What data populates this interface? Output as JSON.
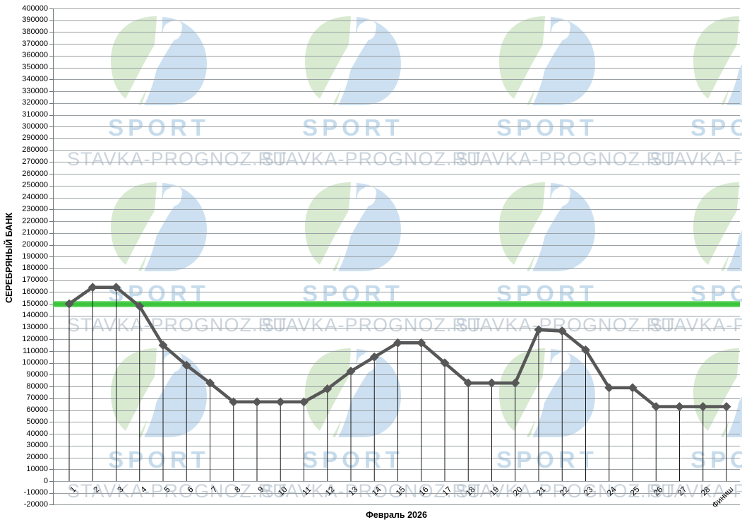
{
  "watermark": {
    "sport_text": "SPORT",
    "site_text": "STAVKA-PROGNOZ.RU",
    "logo_green": "#cfe5c5",
    "logo_blue": "#c0d9ee"
  },
  "chart_data": {
    "type": "line",
    "title": "",
    "xlabel": "Февраль 2026",
    "ylabel": "СЕРЕБРЯНЫЙ БАНК",
    "x_categories": [
      "1",
      "2",
      "3",
      "4",
      "5",
      "6",
      "7",
      "8",
      "9",
      "10",
      "11",
      "12",
      "13",
      "14",
      "15",
      "16",
      "17",
      "18",
      "19",
      "20",
      "21",
      "22",
      "23",
      "24",
      "25",
      "26",
      "27",
      "28",
      "Финиш"
    ],
    "series": [
      {
        "name": "Серебряный банк",
        "color": "#575757",
        "marker": "diamond",
        "values": [
          150000,
          164000,
          164000,
          148000,
          115000,
          98000,
          83000,
          67000,
          67000,
          67000,
          67000,
          78000,
          93000,
          105000,
          117000,
          117000,
          100000,
          83000,
          83000,
          83000,
          128000,
          127000,
          111000,
          79000,
          79000,
          63000,
          63000,
          63000,
          63000
        ]
      }
    ],
    "reference_line": {
      "value": 150000,
      "color": "#3cc43c"
    },
    "y_axis": {
      "min": -20000,
      "max": 400000,
      "step": 10000
    },
    "grid": true,
    "drop_lines_to_zero": true,
    "legend": "none"
  }
}
